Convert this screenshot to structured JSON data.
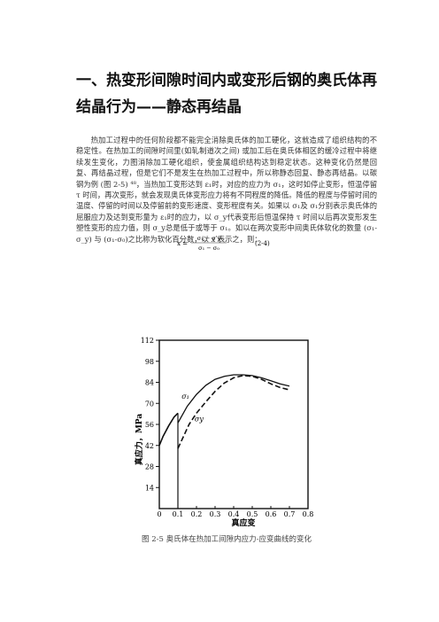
{
  "heading": "一、热变形间隙时间内或变形后钢的奥氏体再结晶行为——静态再结晶",
  "paragraph": "热加工过程中的任何阶段都不能完全消除奥氏体的加工硬化，这就造成了组织结构的不稳定性。在热加工的间隙时间里(如轧制道次之间) 或加工后在奥氏体相区的缓冷过程中将继续发生变化，力图消除加工硬化组织，使金属组织结构达到稳定状态。这种变化仍然是回复、再结晶过程，但是它们不是发生在热加工过程中，所以称静态回复、静态再结晶。以碳钢为例 (图 2-5) ⁴⁸，当热加工变形达到 ε₁时，对应的应力为 σ₁，这时如停止变形，恒温停留 τ 时间，再次变形，就会发现奥氏体变形应力将有不同程度的降低。降低的程度与停留时间的温度、停留的时间以及停留前的变形速度、变形程度有关。如果以 σ₁及 σ₁分别表示奥氏体的屈服应力及达到变形量为 ε₁时的应力，以 σ_y代表变形后恒温保持 τ 时间以后再次变形发生塑性变形的应力值，则 σ_y总是低于或等于 σ₁。如以在两次变形中间奥氏体软化的数量 (σ₁-σ_y) 与 (σ₁-σ₀)之比称为软化百分数，以 x 表示之，则：",
  "formula": {
    "lhs": "x =",
    "numerator": "σ₁ − σ'y",
    "denominator": "σ₁ − σ₀",
    "number": "(2-4)"
  },
  "chart_data": {
    "type": "line",
    "title": "",
    "xlabel": "真应变",
    "ylabel": "真应力，MPa",
    "xlim": [
      0,
      0.8
    ],
    "ylim": [
      0,
      112
    ],
    "x_ticks": [
      "0",
      "0.1",
      "0.2",
      "0.3",
      "0.4",
      "0.5",
      "0.6",
      "0.7",
      "0.8"
    ],
    "y_ticks": [
      "14",
      "28",
      "42",
      "56",
      "70",
      "84",
      "98",
      "112"
    ],
    "series": [
      {
        "name": "σ₁",
        "points": [
          [
            0,
            42
          ],
          [
            0.02,
            48
          ],
          [
            0.05,
            55
          ],
          [
            0.08,
            61
          ],
          [
            0.1,
            63.5
          ]
        ]
      },
      {
        "name": "",
        "points": [
          [
            0.1,
            57
          ],
          [
            0.15,
            68
          ],
          [
            0.2,
            76
          ],
          [
            0.25,
            82
          ],
          [
            0.3,
            86
          ],
          [
            0.35,
            88
          ],
          [
            0.4,
            89
          ],
          [
            0.45,
            89
          ],
          [
            0.5,
            88.5
          ],
          [
            0.55,
            87
          ],
          [
            0.6,
            85
          ],
          [
            0.65,
            83
          ],
          [
            0.7,
            81.5
          ]
        ]
      },
      {
        "name": "σy",
        "points": [
          [
            0.1,
            40
          ],
          [
            0.13,
            48
          ],
          [
            0.16,
            56
          ],
          [
            0.2,
            63.5
          ],
          [
            0.25,
            71
          ],
          [
            0.3,
            78
          ],
          [
            0.35,
            83.5
          ],
          [
            0.4,
            87
          ],
          [
            0.45,
            88.5
          ],
          [
            0.5,
            88
          ],
          [
            0.55,
            86
          ],
          [
            0.6,
            83
          ],
          [
            0.65,
            80.5
          ],
          [
            0.7,
            79
          ]
        ]
      }
    ],
    "unload_x": 0.1
  },
  "caption": "图 2-5 奥氏体在热加工间隙内应力-应变曲线的变化"
}
